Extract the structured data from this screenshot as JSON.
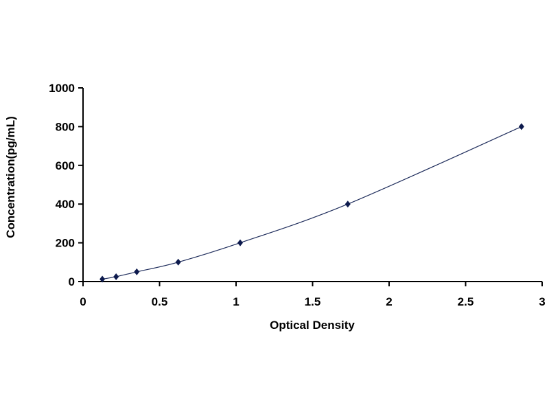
{
  "chart_data": {
    "type": "scatter",
    "title": "",
    "xlabel": "Optical Density",
    "ylabel": "Concentration(pg/mL)",
    "xlim": [
      0,
      3
    ],
    "ylim": [
      0,
      1000
    ],
    "xticks": [
      0,
      0.5,
      1,
      1.5,
      2,
      2.5,
      3
    ],
    "xtick_labels": [
      "0",
      "0.5",
      "1",
      "1.5",
      "2",
      "2.5",
      "3"
    ],
    "yticks": [
      0,
      200,
      400,
      600,
      800,
      1000
    ],
    "ytick_labels": [
      "0",
      "200",
      "400",
      "600",
      "800",
      "1000"
    ],
    "grid": false,
    "legend": "none",
    "trendline": "smooth curve",
    "marker": "diamond",
    "colors": {
      "marker": "#0d1a4d",
      "line": "#1f2d5c"
    },
    "series": [
      {
        "x": [
          0.126,
          0.216,
          0.351,
          0.622,
          1.027,
          1.73,
          2.865
        ],
        "y": [
          12.5,
          25,
          50,
          100,
          200,
          400,
          800
        ]
      }
    ]
  }
}
